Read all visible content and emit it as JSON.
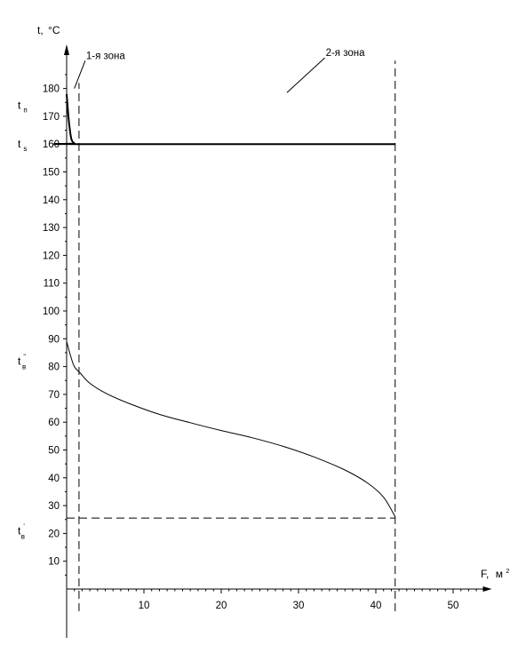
{
  "chart_data": {
    "type": "line",
    "title": "",
    "x_axis": {
      "label": "F,",
      "unit": "м",
      "unit_exp": "2",
      "range": [
        0,
        55
      ],
      "ticks": [
        10,
        20,
        30,
        40,
        50
      ],
      "tick_labels": [
        "10",
        "20",
        "30",
        "40",
        "50"
      ]
    },
    "y_axis": {
      "label": "t,",
      "unit": "°C",
      "range": [
        -8,
        192
      ],
      "ticks": [
        10,
        20,
        30,
        40,
        50,
        60,
        70,
        80,
        90,
        100,
        110,
        120,
        130,
        140,
        150,
        160,
        170,
        180
      ],
      "tick_labels": [
        "10",
        "20",
        "30",
        "40",
        "50",
        "60",
        "70",
        "80",
        "90",
        "100",
        "110",
        "120",
        "130",
        "140",
        "150",
        "160",
        "170",
        "180"
      ]
    },
    "grid": false,
    "series": [
      {
        "style": "thick",
        "points": [
          [
            0,
            178
          ],
          [
            0.3,
            168
          ],
          [
            0.6,
            162
          ],
          [
            1.0,
            160.3
          ],
          [
            1.6,
            160
          ],
          [
            42.5,
            160
          ]
        ]
      },
      {
        "style": "thin",
        "points": [
          [
            0,
            89
          ],
          [
            0.5,
            84
          ],
          [
            1.0,
            80
          ],
          [
            1.8,
            77.5
          ],
          [
            3,
            74
          ],
          [
            5,
            70.5
          ],
          [
            8,
            66.8
          ],
          [
            12,
            62.8
          ],
          [
            16,
            59.8
          ],
          [
            20,
            57
          ],
          [
            24,
            54.4
          ],
          [
            28,
            51.3
          ],
          [
            32,
            47.5
          ],
          [
            36,
            42.8
          ],
          [
            39,
            38
          ],
          [
            41,
            33
          ],
          [
            42.5,
            26
          ]
        ]
      }
    ],
    "reference_lines": [
      {
        "orientation": "vertical",
        "x": 1.6,
        "y_from": -8,
        "y_to": 182
      },
      {
        "orientation": "vertical",
        "x": 42.5,
        "y_from": -8,
        "y_to": 190
      },
      {
        "orientation": "horizontal",
        "y": 25.5,
        "x_from": 0,
        "x_to": 42.5
      }
    ],
    "annotations": [
      {
        "id": "zone1",
        "text": "1-я зона",
        "leader_from": [
          1.0,
          180
        ],
        "leader_to": [
          2.4,
          190
        ]
      },
      {
        "id": "zone2",
        "text": "2-я  зона",
        "leader_from": [
          28.5,
          178.5
        ],
        "leader_to": [
          33.4,
          191
        ]
      }
    ],
    "y_markers": [
      {
        "id": "t_p",
        "base": "t",
        "sub": "п",
        "sup": "",
        "y": 174
      },
      {
        "id": "t_s",
        "base": "t",
        "sub": "s",
        "sup": "",
        "y": 160
      },
      {
        "id": "t_v2",
        "base": "t",
        "sub": "в",
        "sup": "\"",
        "y": 82
      },
      {
        "id": "t_v1",
        "base": "t",
        "sub": "в",
        "sup": "'",
        "y": 21
      }
    ]
  }
}
